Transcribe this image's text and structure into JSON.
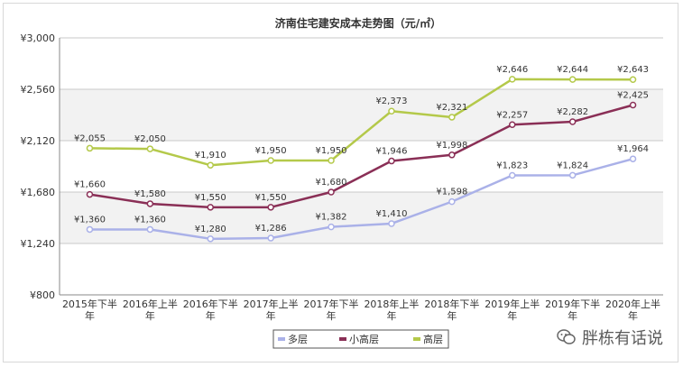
{
  "chart_data": {
    "type": "line",
    "title": "济南住宅建安成本走势图（元/㎡）",
    "categories": [
      "2015年下半年",
      "2016年上半年",
      "2016年下半年",
      "2017年上半年",
      "2017年下半年",
      "2018年上半年",
      "2018年下半年",
      "2019年上半年",
      "2019年下半年",
      "2020年上半年"
    ],
    "category_lines": [
      [
        "2015年下半",
        "年"
      ],
      [
        "2016年上半",
        "年"
      ],
      [
        "2016年下半",
        "年"
      ],
      [
        "2017年上半",
        "年"
      ],
      [
        "2017年下半",
        "年"
      ],
      [
        "2018年上半",
        "年"
      ],
      [
        "2018年下半",
        "年"
      ],
      [
        "2019年上半",
        "年"
      ],
      [
        "2019年下半",
        "年"
      ],
      [
        "2020年上半",
        "年"
      ]
    ],
    "ylim": [
      800,
      3000
    ],
    "yticks": [
      800,
      1240,
      1680,
      2120,
      2560,
      3000
    ],
    "ytick_labels": [
      "¥800",
      "¥1,240",
      "¥1,680",
      "¥2,120",
      "¥2,560",
      "¥3,000"
    ],
    "grid": true,
    "legend_position": "bottom",
    "series": [
      {
        "name": "多层",
        "color": "#aab1e8",
        "values": [
          1360,
          1360,
          1280,
          1286,
          1382,
          1410,
          1598,
          1823,
          1824,
          1964
        ],
        "labels": [
          "¥1,360",
          "¥1,360",
          "¥1,280",
          "¥1,286",
          "¥1,382",
          "¥1,410",
          "¥1,598",
          "¥1,823",
          "¥1,824",
          "¥1,964"
        ]
      },
      {
        "name": "小高层",
        "color": "#8a2f56",
        "values": [
          1660,
          1580,
          1550,
          1550,
          1680,
          1946,
          1998,
          2257,
          2282,
          2425
        ],
        "labels": [
          "¥1,660",
          "¥1,580",
          "¥1,550",
          "¥1,550",
          "¥1,680",
          "¥1,946",
          "¥1,998",
          "¥2,257",
          "¥2,282",
          "¥2,425"
        ]
      },
      {
        "name": "高层",
        "color": "#b4c94a",
        "values": [
          2055,
          2050,
          1910,
          1950,
          1950,
          2373,
          2321,
          2646,
          2644,
          2643
        ],
        "labels": [
          "¥2,055",
          "¥2,050",
          "¥1,910",
          "¥1,950",
          "¥1,950",
          "¥2,373",
          "¥2,321",
          "¥2,646",
          "¥2,644",
          "¥2,643"
        ]
      }
    ]
  },
  "watermark": {
    "text": "胖栋有话说",
    "icon": "wechat-icon"
  }
}
